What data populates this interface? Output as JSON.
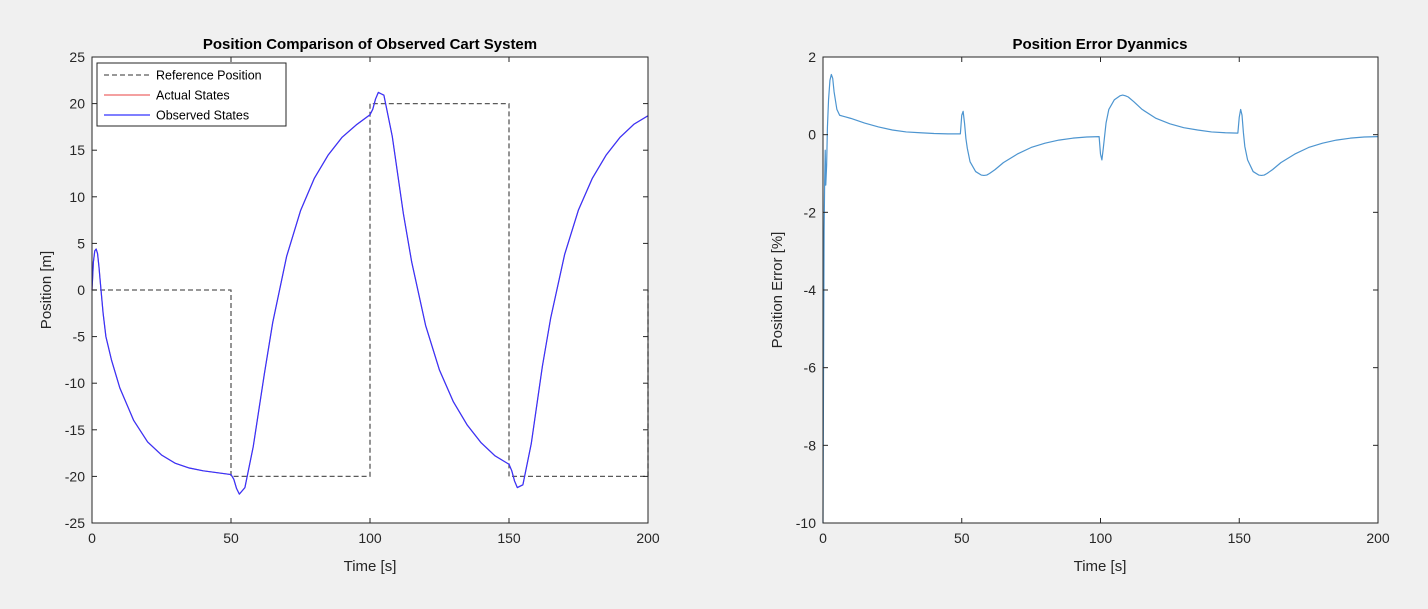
{
  "colors": {
    "figure_bg": "#f0f0f0",
    "axes_bg": "#ffffff",
    "reference": "#5a5a5a",
    "actual": "#f08080",
    "observed": "#3333ff",
    "error": "#4d95d0"
  },
  "chart_data": [
    {
      "type": "line",
      "title": "Position Comparison of Observed Cart System",
      "xlabel": "Time [s]",
      "ylabel": "Position [m]",
      "xlim": [
        0,
        200
      ],
      "ylim": [
        -25,
        25
      ],
      "xticks": [
        0,
        50,
        100,
        150,
        200
      ],
      "yticks": [
        -25,
        -20,
        -15,
        -10,
        -5,
        0,
        5,
        10,
        15,
        20,
        25
      ],
      "grid": false,
      "legend": "top-left",
      "series": [
        {
          "name": "Reference Position",
          "style": "dashed",
          "color": "#5a5a5a",
          "x": [
            0,
            0,
            50,
            50,
            100,
            100,
            150,
            150,
            200,
            200
          ],
          "y": [
            0,
            0,
            0,
            -20,
            -20,
            20,
            20,
            -20,
            -20,
            0
          ]
        },
        {
          "name": "Actual States",
          "style": "solid",
          "color": "#f08080",
          "x": [
            0,
            0.5,
            1,
            1.5,
            2,
            2.5,
            3,
            4,
            5,
            7,
            10,
            15,
            20,
            25,
            30,
            35,
            40,
            45,
            50,
            51,
            52,
            53,
            55,
            58,
            62,
            65,
            70,
            75,
            80,
            85,
            90,
            95,
            100,
            101,
            102,
            103,
            105,
            108,
            112,
            115,
            120,
            125,
            130,
            135,
            140,
            145,
            150,
            151,
            152,
            153,
            155,
            158,
            162,
            165,
            170,
            175,
            180,
            185,
            190,
            195,
            200
          ],
          "y": [
            0,
            3.0,
            4.2,
            4.4,
            3.9,
            2.5,
            0.8,
            -2.5,
            -5.0,
            -7.5,
            -10.5,
            -14.0,
            -16.3,
            -17.7,
            -18.6,
            -19.1,
            -19.4,
            -19.6,
            -19.8,
            -20.3,
            -21.3,
            -21.9,
            -21.2,
            -16.8,
            -9.0,
            -3.5,
            3.6,
            8.5,
            12.0,
            14.5,
            16.4,
            17.7,
            18.8,
            19.4,
            20.5,
            21.2,
            20.9,
            16.5,
            8.2,
            3.0,
            -3.8,
            -8.6,
            -12.0,
            -14.5,
            -16.4,
            -17.8,
            -18.7,
            -19.4,
            -20.5,
            -21.2,
            -20.9,
            -16.5,
            -8.2,
            -3.0,
            3.8,
            8.6,
            12.0,
            14.5,
            16.4,
            17.8,
            18.7
          ]
        },
        {
          "name": "Observed States",
          "style": "solid",
          "color": "#3333ff",
          "x": [
            0,
            0.5,
            1,
            1.5,
            2,
            2.5,
            3,
            4,
            5,
            7,
            10,
            15,
            20,
            25,
            30,
            35,
            40,
            45,
            50,
            51,
            52,
            53,
            55,
            58,
            62,
            65,
            70,
            75,
            80,
            85,
            90,
            95,
            100,
            101,
            102,
            103,
            105,
            108,
            112,
            115,
            120,
            125,
            130,
            135,
            140,
            145,
            150,
            151,
            152,
            153,
            155,
            158,
            162,
            165,
            170,
            175,
            180,
            185,
            190,
            195,
            200
          ],
          "y": [
            0,
            3.0,
            4.2,
            4.4,
            3.9,
            2.5,
            0.8,
            -2.5,
            -5.0,
            -7.5,
            -10.5,
            -14.0,
            -16.3,
            -17.7,
            -18.6,
            -19.1,
            -19.4,
            -19.6,
            -19.8,
            -20.3,
            -21.3,
            -21.9,
            -21.2,
            -16.8,
            -9.0,
            -3.5,
            3.6,
            8.5,
            12.0,
            14.5,
            16.4,
            17.7,
            18.8,
            19.4,
            20.5,
            21.2,
            20.9,
            16.5,
            8.2,
            3.0,
            -3.8,
            -8.6,
            -12.0,
            -14.5,
            -16.4,
            -17.8,
            -18.7,
            -19.4,
            -20.5,
            -21.2,
            -20.9,
            -16.5,
            -8.2,
            -3.0,
            3.8,
            8.6,
            12.0,
            14.5,
            16.4,
            17.8,
            18.7
          ]
        }
      ]
    },
    {
      "type": "line",
      "title": "Position Error Dyanmics",
      "xlabel": "Time [s]",
      "ylabel": "Position Error [%]",
      "xlim": [
        0,
        200
      ],
      "ylim": [
        -10,
        2
      ],
      "xticks": [
        0,
        50,
        100,
        150,
        200
      ],
      "yticks": [
        -10,
        -8,
        -6,
        -4,
        -2,
        0,
        2
      ],
      "grid": false,
      "series": [
        {
          "style": "solid",
          "color": "#4d95d0",
          "x": [
            0,
            0.2,
            0.4,
            0.6,
            0.8,
            1.0,
            1.3,
            1.6,
            2.0,
            2.5,
            3.0,
            3.5,
            4.0,
            5.0,
            6.0,
            7.0,
            8.0,
            10,
            15,
            20,
            25,
            30,
            35,
            40,
            45,
            49.5,
            50,
            50.5,
            51,
            51.5,
            52,
            53,
            55,
            57,
            58,
            59,
            60,
            62,
            65,
            70,
            75,
            80,
            85,
            90,
            95,
            99.5,
            100,
            100.5,
            101,
            102,
            103,
            105,
            107,
            108,
            109,
            110,
            112,
            115,
            120,
            125,
            130,
            135,
            140,
            145,
            149.5,
            150,
            150.5,
            151,
            151.5,
            152,
            153,
            155,
            157,
            158,
            159,
            160,
            162,
            165,
            170,
            175,
            180,
            185,
            190,
            195,
            200
          ],
          "y": [
            -10,
            -6,
            -2.5,
            -1.2,
            -0.4,
            -1.3,
            -0.8,
            0.2,
            0.9,
            1.4,
            1.55,
            1.45,
            1.1,
            0.65,
            0.5,
            0.48,
            0.46,
            0.42,
            0.3,
            0.2,
            0.12,
            0.07,
            0.05,
            0.03,
            0.02,
            0.02,
            0.5,
            0.6,
            0.3,
            -0.1,
            -0.35,
            -0.7,
            -0.95,
            -1.04,
            -1.05,
            -1.04,
            -1.0,
            -0.9,
            -0.72,
            -0.5,
            -0.33,
            -0.22,
            -0.14,
            -0.09,
            -0.06,
            -0.05,
            -0.5,
            -0.65,
            -0.35,
            0.3,
            0.65,
            0.9,
            1.0,
            1.02,
            1.0,
            0.97,
            0.85,
            0.65,
            0.42,
            0.28,
            0.18,
            0.12,
            0.07,
            0.05,
            0.04,
            0.45,
            0.65,
            0.5,
            0.05,
            -0.3,
            -0.65,
            -0.95,
            -1.04,
            -1.05,
            -1.04,
            -1.0,
            -0.9,
            -0.72,
            -0.5,
            -0.33,
            -0.22,
            -0.14,
            -0.09,
            -0.06,
            -0.05
          ]
        }
      ]
    }
  ]
}
